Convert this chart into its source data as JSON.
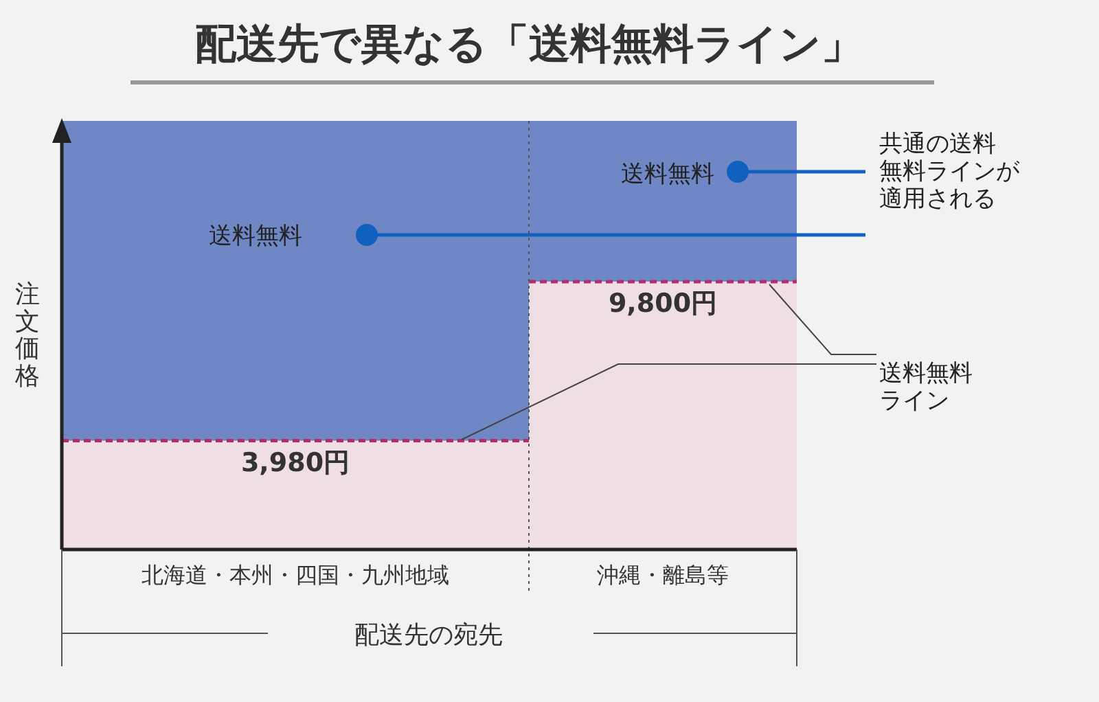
{
  "chart_data": {
    "type": "bar",
    "title": "配送先で異なる「送料無料ライン」",
    "xlabel": "配送先の宛先",
    "ylabel": "注文価格",
    "categories": [
      "北海道・本州・四国・九州地域",
      "沖縄・離島等"
    ],
    "values": [
      3980,
      9800
    ],
    "value_labels": [
      "3,980円",
      "9,800円"
    ],
    "color": "#efdfe5",
    "line_style": "dashed",
    "annotations": [
      "送料無料",
      "送料無料",
      "共通の送料無料ラインが適用される",
      "送料無料ライン"
    ]
  }
}
